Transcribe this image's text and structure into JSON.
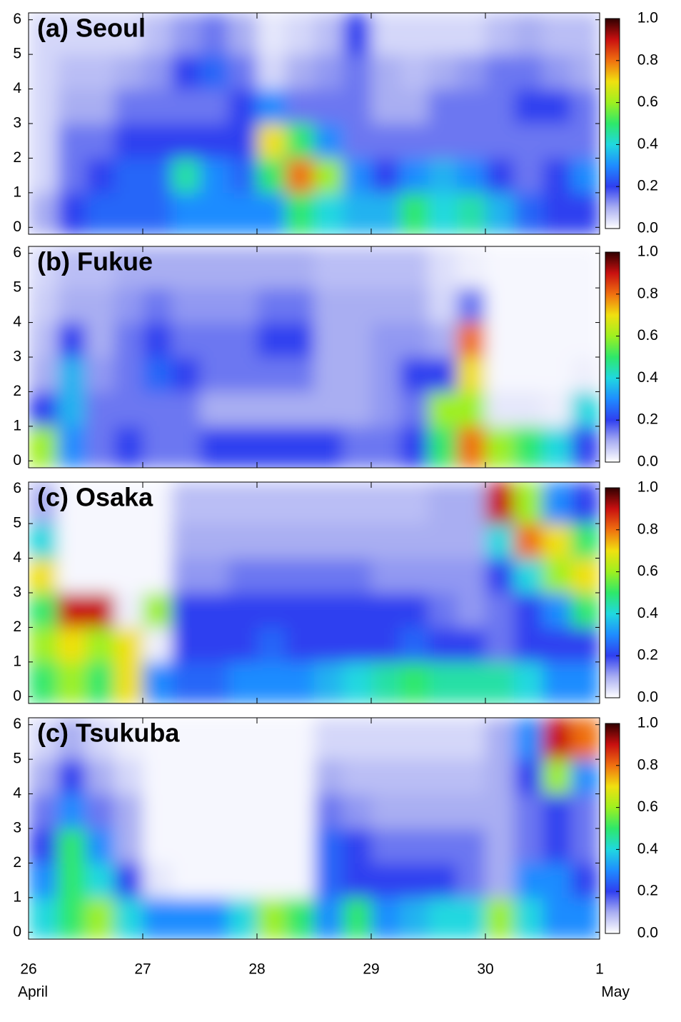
{
  "chart_data": [
    {
      "type": "heatmap",
      "title": "(a) Seoul",
      "x": [
        26,
        26.25,
        26.5,
        26.75,
        27,
        27.25,
        27.5,
        27.75,
        28,
        28.25,
        28.5,
        28.75,
        29,
        29.25,
        29.5,
        29.75,
        30,
        30.25,
        30.5,
        30.75,
        31
      ],
      "y": [
        -0.2,
        1,
        2,
        3,
        4,
        5,
        6.2
      ],
      "z": [
        [
          0.1,
          0.2,
          0.25,
          0.25,
          0.25,
          0.3,
          0.3,
          0.3,
          0.3,
          0.5,
          0.4,
          0.35,
          0.35,
          0.5,
          0.4,
          0.45,
          0.35,
          0.25,
          0.2,
          0.2
        ],
        [
          0.05,
          0.15,
          0.2,
          0.25,
          0.25,
          0.45,
          0.3,
          0.25,
          0.5,
          0.8,
          0.6,
          0.3,
          0.2,
          0.3,
          0.35,
          0.3,
          0.2,
          0.15,
          0.2,
          0.3
        ],
        [
          0.05,
          0.15,
          0.15,
          0.2,
          0.2,
          0.2,
          0.2,
          0.2,
          0.7,
          0.5,
          0.3,
          0.15,
          0.15,
          0.15,
          0.15,
          0.15,
          0.15,
          0.15,
          0.15,
          0.15
        ],
        [
          0.05,
          0.1,
          0.1,
          0.15,
          0.15,
          0.15,
          0.15,
          0.2,
          0.3,
          0.15,
          0.15,
          0.15,
          0.1,
          0.1,
          0.15,
          0.15,
          0.15,
          0.2,
          0.2,
          0.15
        ],
        [
          0.05,
          0.08,
          0.08,
          0.1,
          0.12,
          0.2,
          0.25,
          0.15,
          0.05,
          0.1,
          0.12,
          0.15,
          0.1,
          0.08,
          0.1,
          0.12,
          0.15,
          0.15,
          0.12,
          0.1
        ],
        [
          0.05,
          0.05,
          0.05,
          0.05,
          0.08,
          0.12,
          0.15,
          0.1,
          0.03,
          0.05,
          0.08,
          0.2,
          0.05,
          0.05,
          0.05,
          0.05,
          0.08,
          0.1,
          0.08,
          0.08
        ]
      ],
      "xlim": [
        26,
        31
      ],
      "ylim": [
        -0.2,
        6.2
      ],
      "yticks": [
        0,
        1,
        2,
        3,
        4,
        5,
        6
      ],
      "colorbar": {
        "lim": [
          0,
          1
        ],
        "ticks": [
          {
            "value": 0,
            "label": "0.0"
          },
          0.2,
          0.4,
          0.6,
          0.8,
          {
            "value": 1,
            "label": "1.0"
          }
        ],
        "colormap": [
          "#ffffff",
          "#a9aef2",
          "#2f3ff0",
          "#1f8cff",
          "#20d8e0",
          "#2ee86a",
          "#9ef020",
          "#f0e010",
          "#f07010",
          "#c81010",
          "#300000"
        ]
      }
    },
    {
      "type": "heatmap",
      "title": "(b) Fukue",
      "x": [
        26,
        26.25,
        26.5,
        26.75,
        27,
        27.25,
        27.5,
        27.75,
        28,
        28.25,
        28.5,
        28.75,
        29,
        29.25,
        29.5,
        29.75,
        30,
        30.25,
        30.5,
        30.75,
        31
      ],
      "y": [
        -0.2,
        1,
        2,
        3,
        4,
        5,
        6.2
      ],
      "z": [
        [
          0.6,
          0.3,
          0.15,
          0.2,
          0.15,
          0.15,
          0.2,
          0.2,
          0.2,
          0.2,
          0.2,
          0.15,
          0.15,
          0.2,
          0.5,
          0.8,
          0.6,
          0.5,
          0.4,
          0.2
        ],
        [
          0.2,
          0.35,
          0.15,
          0.15,
          0.15,
          0.15,
          0.1,
          0.1,
          0.1,
          0.1,
          0.1,
          0.1,
          0.12,
          0.15,
          0.6,
          0.6,
          0.03,
          0.03,
          0.02,
          0.4
        ],
        [
          0.1,
          0.35,
          0.12,
          0.15,
          0.25,
          0.2,
          0.15,
          0.15,
          0.15,
          0.15,
          0.1,
          0.1,
          0.12,
          0.2,
          0.2,
          0.7,
          0.01,
          0.01,
          0.01,
          0.02
        ],
        [
          0.08,
          0.2,
          0.1,
          0.15,
          0.2,
          0.15,
          0.15,
          0.15,
          0.2,
          0.2,
          0.1,
          0.1,
          0.12,
          0.12,
          0.1,
          0.8,
          0.01,
          0.01,
          0.01,
          0.01
        ],
        [
          0.06,
          0.1,
          0.1,
          0.12,
          0.15,
          0.12,
          0.12,
          0.12,
          0.15,
          0.15,
          0.1,
          0.1,
          0.1,
          0.1,
          0.05,
          0.15,
          0.01,
          0.01,
          0.01,
          0.01
        ],
        [
          0.05,
          0.08,
          0.08,
          0.1,
          0.1,
          0.1,
          0.1,
          0.1,
          0.1,
          0.1,
          0.08,
          0.08,
          0.08,
          0.08,
          0.04,
          0.02,
          0.01,
          0.01,
          0.01,
          0.01
        ]
      ],
      "xlim": [
        26,
        31
      ],
      "ylim": [
        -0.2,
        6.2
      ],
      "yticks": [
        0,
        1,
        2,
        3,
        4,
        5,
        6
      ],
      "colorbar": {
        "lim": [
          0,
          1
        ],
        "ticks": [
          {
            "value": 0,
            "label": "0.0"
          },
          0.2,
          0.4,
          0.6,
          0.8,
          {
            "value": 1,
            "label": "1.0"
          }
        ],
        "colormap": [
          "#ffffff",
          "#a9aef2",
          "#2f3ff0",
          "#1f8cff",
          "#20d8e0",
          "#2ee86a",
          "#9ef020",
          "#f0e010",
          "#f07010",
          "#c81010",
          "#300000"
        ]
      }
    },
    {
      "type": "heatmap",
      "title": "(c) Osaka",
      "x": [
        26,
        26.25,
        26.5,
        26.75,
        27,
        27.25,
        27.5,
        27.75,
        28,
        28.25,
        28.5,
        28.75,
        29,
        29.25,
        29.5,
        29.75,
        30,
        30.25,
        30.5,
        30.75,
        31
      ],
      "y": [
        -0.2,
        1,
        2,
        3,
        4,
        5,
        6.2
      ],
      "z": [
        [
          0.5,
          0.6,
          0.5,
          0.7,
          0.3,
          0.25,
          0.25,
          0.3,
          0.3,
          0.3,
          0.35,
          0.4,
          0.45,
          0.5,
          0.45,
          0.45,
          0.45,
          0.4,
          0.3,
          0.3
        ],
        [
          0.6,
          0.7,
          0.6,
          0.7,
          0.02,
          0.2,
          0.2,
          0.2,
          0.25,
          0.2,
          0.2,
          0.2,
          0.2,
          0.25,
          0.2,
          0.2,
          0.15,
          0.2,
          0.2,
          0.2
        ],
        [
          0.5,
          0.9,
          0.9,
          0.02,
          0.6,
          0.2,
          0.2,
          0.2,
          0.2,
          0.2,
          0.2,
          0.2,
          0.2,
          0.2,
          0.15,
          0.12,
          0.15,
          0.2,
          0.3,
          0.5
        ],
        [
          0.7,
          0.01,
          0.01,
          0.01,
          0.01,
          0.12,
          0.12,
          0.15,
          0.15,
          0.15,
          0.15,
          0.15,
          0.12,
          0.12,
          0.12,
          0.12,
          0.2,
          0.4,
          0.6,
          0.7
        ],
        [
          0.4,
          0.01,
          0.01,
          0.01,
          0.01,
          0.1,
          0.1,
          0.1,
          0.1,
          0.1,
          0.1,
          0.1,
          0.1,
          0.1,
          0.1,
          0.1,
          0.4,
          0.8,
          0.7,
          0.5
        ],
        [
          0.1,
          0.01,
          0.01,
          0.01,
          0.01,
          0.08,
          0.08,
          0.08,
          0.08,
          0.08,
          0.08,
          0.08,
          0.08,
          0.08,
          0.1,
          0.1,
          0.9,
          0.6,
          0.3,
          0.2
        ]
      ],
      "xlim": [
        26,
        31
      ],
      "ylim": [
        -0.2,
        6.2
      ],
      "yticks": [
        0,
        1,
        2,
        3,
        4,
        5,
        6
      ],
      "colorbar": {
        "lim": [
          0,
          1
        ],
        "ticks": [
          {
            "value": 0,
            "label": "0.0"
          },
          0.2,
          0.4,
          0.6,
          0.8,
          {
            "value": 1,
            "label": "1.0"
          }
        ],
        "colormap": [
          "#ffffff",
          "#a9aef2",
          "#2f3ff0",
          "#1f8cff",
          "#20d8e0",
          "#2ee86a",
          "#9ef020",
          "#f0e010",
          "#f07010",
          "#c81010",
          "#300000"
        ]
      }
    },
    {
      "type": "heatmap",
      "title": "(c) Tsukuba",
      "x": [
        26,
        26.25,
        26.5,
        26.75,
        27,
        27.25,
        27.5,
        27.75,
        28,
        28.25,
        28.5,
        28.75,
        29,
        29.25,
        29.5,
        29.75,
        30,
        30.25,
        30.5,
        30.75,
        31
      ],
      "y": [
        -0.2,
        1,
        2,
        3,
        4,
        5,
        6.2
      ],
      "z": [
        [
          0.4,
          0.5,
          0.6,
          0.4,
          0.3,
          0.3,
          0.3,
          0.4,
          0.6,
          0.5,
          0.3,
          0.5,
          0.3,
          0.35,
          0.4,
          0.4,
          0.6,
          0.4,
          0.3,
          0.3
        ],
        [
          0.3,
          0.5,
          0.4,
          0.2,
          0.03,
          0.01,
          0.01,
          0.01,
          0.01,
          0.01,
          0.25,
          0.2,
          0.2,
          0.2,
          0.2,
          0.15,
          0.1,
          0.3,
          0.3,
          0.2
        ],
        [
          0.2,
          0.5,
          0.3,
          0.1,
          0.01,
          0.01,
          0.01,
          0.01,
          0.01,
          0.01,
          0.25,
          0.2,
          0.15,
          0.15,
          0.15,
          0.15,
          0.1,
          0.15,
          0.2,
          0.15
        ],
        [
          0.15,
          0.3,
          0.15,
          0.1,
          0.01,
          0.01,
          0.01,
          0.01,
          0.01,
          0.01,
          0.15,
          0.12,
          0.1,
          0.1,
          0.1,
          0.1,
          0.1,
          0.15,
          0.2,
          0.15
        ],
        [
          0.1,
          0.2,
          0.1,
          0.05,
          0.01,
          0.01,
          0.01,
          0.01,
          0.01,
          0.01,
          0.1,
          0.08,
          0.08,
          0.08,
          0.08,
          0.08,
          0.1,
          0.2,
          0.6,
          0.3
        ],
        [
          0.05,
          0.1,
          0.05,
          0.02,
          0.01,
          0.01,
          0.01,
          0.01,
          0.01,
          0.01,
          0.05,
          0.05,
          0.05,
          0.05,
          0.05,
          0.05,
          0.1,
          0.3,
          0.9,
          0.8
        ]
      ],
      "xlim": [
        26,
        31
      ],
      "ylim": [
        -0.2,
        6.2
      ],
      "yticks": [
        0,
        1,
        2,
        3,
        4,
        5,
        6
      ],
      "xticks": [
        26,
        27,
        28,
        29,
        30,
        {
          "value": 31,
          "label": "1"
        }
      ],
      "xtick_months": [
        {
          "value": 26,
          "label": "April"
        },
        {
          "value": 31,
          "label": "May"
        }
      ],
      "colorbar": {
        "lim": [
          0,
          1
        ],
        "ticks": [
          {
            "value": 0,
            "label": "0.0"
          },
          0.2,
          0.4,
          0.6,
          0.8,
          {
            "value": 1,
            "label": "1.0"
          }
        ],
        "colormap": [
          "#ffffff",
          "#a9aef2",
          "#2f3ff0",
          "#1f8cff",
          "#20d8e0",
          "#2ee86a",
          "#9ef020",
          "#f0e010",
          "#f07010",
          "#c81010",
          "#300000"
        ]
      }
    }
  ]
}
